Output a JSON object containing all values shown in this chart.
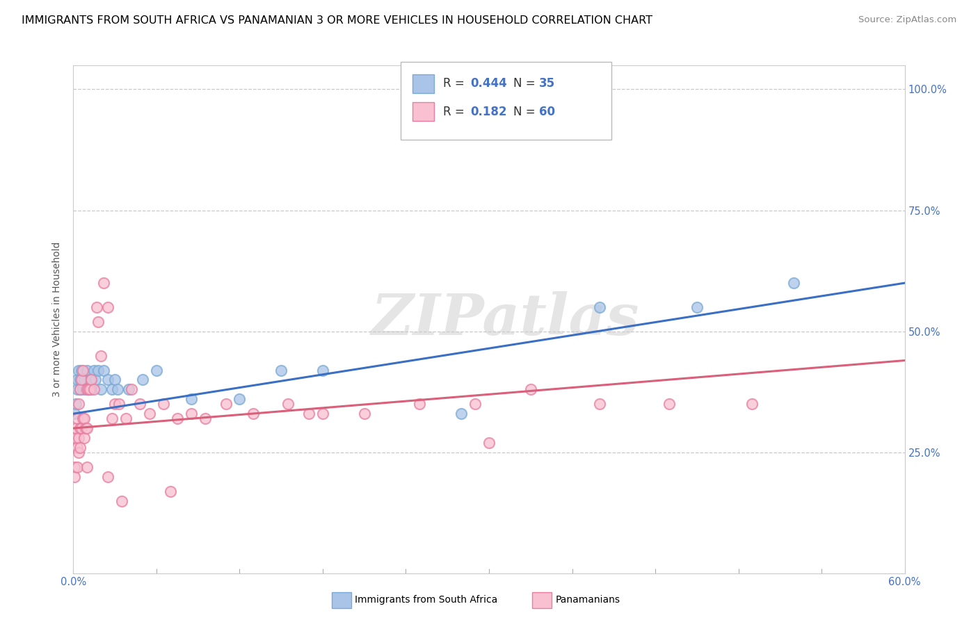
{
  "title": "IMMIGRANTS FROM SOUTH AFRICA VS PANAMANIAN 3 OR MORE VEHICLES IN HOUSEHOLD CORRELATION CHART",
  "source": "Source: ZipAtlas.com",
  "ylabel": "3 or more Vehicles in Household",
  "watermark": "ZIPatlas",
  "series": [
    {
      "name": "Immigrants from South Africa",
      "R": 0.444,
      "N": 35,
      "dot_color": "#aac4e8",
      "edge_color": "#7aaad4",
      "line_color": "#3a6fc4",
      "x": [
        0.001,
        0.002,
        0.003,
        0.003,
        0.004,
        0.005,
        0.005,
        0.006,
        0.007,
        0.008,
        0.009,
        0.01,
        0.011,
        0.012,
        0.013,
        0.015,
        0.016,
        0.018,
        0.02,
        0.022,
        0.025,
        0.028,
        0.03,
        0.032,
        0.04,
        0.05,
        0.06,
        0.085,
        0.12,
        0.15,
        0.18,
        0.28,
        0.38,
        0.45,
        0.52
      ],
      "y": [
        0.33,
        0.35,
        0.38,
        0.4,
        0.42,
        0.4,
        0.38,
        0.42,
        0.38,
        0.4,
        0.38,
        0.42,
        0.38,
        0.4,
        0.38,
        0.42,
        0.4,
        0.42,
        0.38,
        0.42,
        0.4,
        0.38,
        0.4,
        0.38,
        0.38,
        0.4,
        0.42,
        0.36,
        0.36,
        0.42,
        0.42,
        0.33,
        0.55,
        0.55,
        0.6
      ],
      "trend_x": [
        0.0,
        0.6
      ],
      "trend_y": [
        0.33,
        0.6
      ],
      "trend_style": "-"
    },
    {
      "name": "Panamanians",
      "R": 0.182,
      "N": 60,
      "dot_color": "#f8c0d0",
      "edge_color": "#e87da0",
      "line_color": "#d9607a",
      "x": [
        0.001,
        0.001,
        0.001,
        0.002,
        0.002,
        0.003,
        0.003,
        0.003,
        0.004,
        0.004,
        0.004,
        0.005,
        0.005,
        0.005,
        0.006,
        0.006,
        0.007,
        0.007,
        0.008,
        0.008,
        0.009,
        0.01,
        0.01,
        0.011,
        0.012,
        0.013,
        0.015,
        0.017,
        0.018,
        0.02,
        0.022,
        0.025,
        0.028,
        0.03,
        0.033,
        0.038,
        0.042,
        0.048,
        0.055,
        0.065,
        0.075,
        0.085,
        0.095,
        0.11,
        0.13,
        0.155,
        0.18,
        0.21,
        0.25,
        0.29,
        0.33,
        0.38,
        0.43,
        0.49,
        0.17,
        0.01,
        0.035,
        0.025,
        0.07,
        0.3
      ],
      "y": [
        0.28,
        0.22,
        0.2,
        0.28,
        0.3,
        0.32,
        0.26,
        0.22,
        0.35,
        0.28,
        0.25,
        0.38,
        0.3,
        0.26,
        0.4,
        0.3,
        0.42,
        0.32,
        0.28,
        0.32,
        0.3,
        0.38,
        0.3,
        0.38,
        0.38,
        0.4,
        0.38,
        0.55,
        0.52,
        0.45,
        0.6,
        0.55,
        0.32,
        0.35,
        0.35,
        0.32,
        0.38,
        0.35,
        0.33,
        0.35,
        0.32,
        0.33,
        0.32,
        0.35,
        0.33,
        0.35,
        0.33,
        0.33,
        0.35,
        0.35,
        0.38,
        0.35,
        0.35,
        0.35,
        0.33,
        0.22,
        0.15,
        0.2,
        0.17,
        0.27
      ],
      "trend_x": [
        0.0,
        0.6
      ],
      "trend_y": [
        0.3,
        0.44
      ],
      "trend_style": "-"
    }
  ],
  "xlim": [
    0.0,
    0.6
  ],
  "ylim": [
    0.0,
    1.05
  ],
  "bg_color": "#ffffff",
  "grid_color": "#c8c8c8",
  "title_fontsize": 11.5,
  "axis_label_fontsize": 10,
  "tick_fontsize": 10.5,
  "legend_fontsize": 12
}
